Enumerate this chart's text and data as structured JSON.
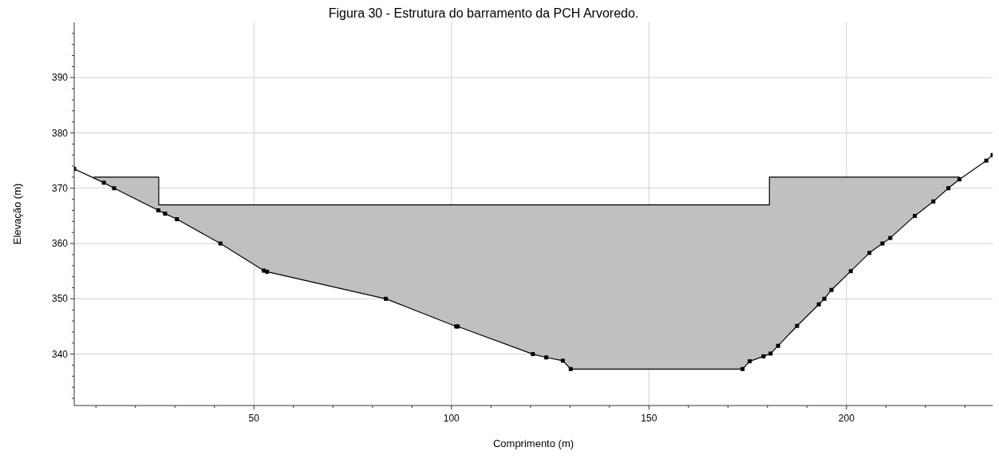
{
  "chart_data": {
    "type": "line",
    "title": "Figura 30 - Estrutura do barramento da PCH Arvoredo.",
    "xlabel": "Comprimento (m)",
    "ylabel": "Elevação (m)",
    "xlim": [
      4.5,
      237
    ],
    "ylim": [
      330.7,
      400
    ],
    "xticks": [
      {
        "value": 10,
        "label": null
      },
      {
        "value": 20,
        "label": null
      },
      {
        "value": 30,
        "label": null
      },
      {
        "value": 40,
        "label": null
      },
      50,
      {
        "value": 60,
        "label": null
      },
      {
        "value": 70,
        "label": null
      },
      {
        "value": 80,
        "label": null
      },
      {
        "value": 90,
        "label": null
      },
      100,
      {
        "value": 110,
        "label": null
      },
      {
        "value": 120,
        "label": null
      },
      {
        "value": 130,
        "label": null
      },
      {
        "value": 140,
        "label": null
      },
      150,
      {
        "value": 160,
        "label": null
      },
      {
        "value": 170,
        "label": null
      },
      {
        "value": 180,
        "label": null
      },
      {
        "value": 190,
        "label": null
      },
      200,
      {
        "value": 210,
        "label": null
      },
      {
        "value": 220,
        "label": null
      },
      {
        "value": 230,
        "label": null
      }
    ],
    "yticks": [
      {
        "value": 332,
        "label": null
      },
      {
        "value": 334,
        "label": null
      },
      {
        "value": 336,
        "label": null
      },
      {
        "value": 338,
        "label": null
      },
      340,
      {
        "value": 342,
        "label": null
      },
      {
        "value": 344,
        "label": null
      },
      {
        "value": 346,
        "label": null
      },
      {
        "value": 348,
        "label": null
      },
      350,
      {
        "value": 352,
        "label": null
      },
      {
        "value": 354,
        "label": null
      },
      {
        "value": 356,
        "label": null
      },
      {
        "value": 358,
        "label": null
      },
      360,
      {
        "value": 362,
        "label": null
      },
      {
        "value": 364,
        "label": null
      },
      {
        "value": 366,
        "label": null
      },
      {
        "value": 368,
        "label": null
      },
      370,
      {
        "value": 372,
        "label": null
      },
      {
        "value": 374,
        "label": null
      },
      {
        "value": 376,
        "label": null
      },
      {
        "value": 378,
        "label": null
      },
      380,
      {
        "value": 382,
        "label": null
      },
      {
        "value": 384,
        "label": null
      },
      {
        "value": 386,
        "label": null
      },
      {
        "value": 388,
        "label": null
      },
      390,
      {
        "value": 392,
        "label": null
      },
      {
        "value": 394,
        "label": null
      },
      {
        "value": 396,
        "label": null
      },
      {
        "value": 398,
        "label": null
      }
    ],
    "grid": true,
    "series": [
      {
        "type": "area",
        "color": "#c0c0c0",
        "x": [
          9.4,
          25.9,
          25.9,
          180.5,
          180.5,
          228.7
        ],
        "values": [
          372,
          372,
          367,
          367,
          372,
          372
        ]
      },
      {
        "color": "#000000",
        "marker": "square",
        "x": [
          4.5,
          12,
          14.6,
          25.8,
          27.5,
          30.5,
          41.5,
          52.5,
          53.3,
          83.4,
          101.2,
          101.6,
          120.6,
          124,
          128.2,
          130.2,
          173.7,
          175.5,
          179,
          180.8,
          182.7,
          187.5,
          193,
          194.4,
          196.2,
          201.1,
          205.8,
          209.1,
          211.1,
          217.3,
          222,
          225.8,
          228.6,
          235.4,
          237
        ],
        "values": [
          373.5,
          371,
          370,
          366,
          365.4,
          364.4,
          360,
          355.1,
          354.9,
          350,
          345,
          345,
          340,
          339.4,
          338.8,
          337.3,
          337.3,
          338.7,
          339.6,
          340.1,
          341.5,
          345.1,
          349,
          350,
          351.6,
          355,
          358.3,
          360,
          361,
          365,
          367.6,
          370,
          371.6,
          375,
          376
        ]
      }
    ]
  }
}
